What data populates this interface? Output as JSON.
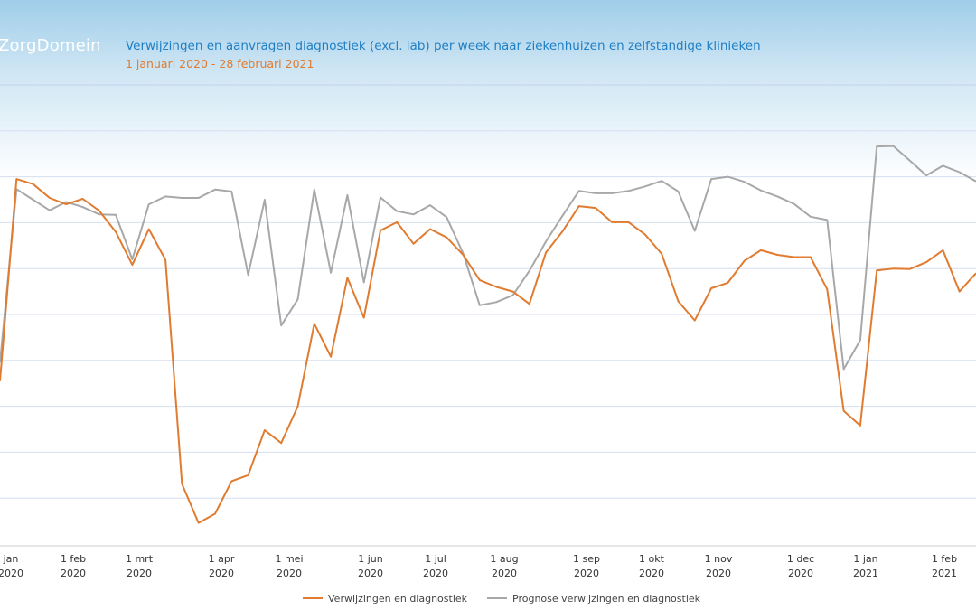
{
  "logo_text": "ZorgDomein",
  "title": "Verwijzingen en aanvragen diagnostiek (excl. lab) per week naar ziekenhuizen en zelfstandige klinieken",
  "subtitle": "1 januari 2020 - 28 februari 2021",
  "colors": {
    "title": "#1f7fc4",
    "subtitle": "#e07b2f",
    "actual": "#e07b2f",
    "forecast": "#a8a8a8",
    "gridline": "#d6def0",
    "topline": "#c4cff0",
    "axis": "#cccccc"
  },
  "chart_data": {
    "type": "line",
    "title": "Verwijzingen en aanvragen diagnostiek (excl. lab) per week naar ziekenhuizen en zelfstandige klinieken",
    "subtitle": "1 januari 2020 - 28 februari 2021",
    "xlabel": "",
    "ylabel": "",
    "y_tick_labels_visible": false,
    "ylim": [
      0,
      100
    ],
    "gridlines": [
      10,
      20,
      30,
      40,
      50,
      60,
      70,
      80,
      90
    ],
    "grid": true,
    "legend_position": "bottom-center",
    "x_tick_labels": [
      {
        "line1": "jan",
        "line2": "2020"
      },
      {
        "line1": "1 feb",
        "line2": "2020"
      },
      {
        "line1": "1 mrt",
        "line2": "2020"
      },
      {
        "line1": "1 apr",
        "line2": "2020"
      },
      {
        "line1": "1 mei",
        "line2": "2020"
      },
      {
        "line1": "1 jun",
        "line2": "2020"
      },
      {
        "line1": "1 jul",
        "line2": "2020"
      },
      {
        "line1": "1 aug",
        "line2": "2020"
      },
      {
        "line1": "1 sep",
        "line2": "2020"
      },
      {
        "line1": "1 okt",
        "line2": "2020"
      },
      {
        "line1": "1 nov",
        "line2": "2020"
      },
      {
        "line1": "1 dec",
        "line2": "2020"
      },
      {
        "line1": "1 jan",
        "line2": "2021"
      },
      {
        "line1": "1 feb",
        "line2": "2021"
      }
    ],
    "series": [
      {
        "name": "Verwijzingen en diagnostiek",
        "values": [
          35.5,
          79.5,
          78.4,
          75.4,
          74.0,
          75.2,
          72.6,
          68.0,
          60.8,
          68.6,
          61.9,
          13.1,
          4.6,
          6.6,
          13.7,
          15.0,
          24.8,
          22.0,
          30.0,
          48.0,
          40.8,
          58.0,
          49.3,
          68.3,
          70.1,
          65.4,
          68.6,
          66.8,
          63.0,
          57.5,
          56.0,
          55.0,
          52.3,
          63.5,
          68.1,
          73.6,
          73.2,
          70.1,
          70.1,
          67.4,
          63.2,
          52.9,
          48.7,
          55.7,
          56.9,
          61.7,
          64.0,
          63.0,
          62.5,
          62.5,
          55.5,
          29.0,
          25.8,
          59.6,
          60.0,
          59.9,
          61.4,
          64.0,
          55.0,
          59.0
        ]
      },
      {
        "name": "Prognose verwijzingen en diagnostiek",
        "values": [
          39.5,
          77.3,
          75.0,
          72.7,
          74.5,
          73.4,
          71.8,
          71.7,
          62.0,
          74.0,
          75.7,
          75.4,
          75.4,
          77.2,
          76.8,
          58.6,
          75.0,
          47.6,
          53.3,
          77.2,
          59.1,
          76.0,
          57.0,
          75.5,
          72.5,
          71.8,
          73.8,
          71.2,
          63.3,
          52.0,
          52.7,
          54.2,
          59.5,
          65.9,
          71.5,
          76.9,
          76.4,
          76.4,
          76.9,
          77.9,
          79.1,
          76.8,
          68.2,
          79.5,
          80.0,
          78.9,
          77.0,
          75.7,
          74.1,
          71.3,
          70.6,
          38.1,
          44.4,
          86.6,
          86.7,
          83.5,
          80.3,
          82.4,
          81.0,
          79.0
        ]
      }
    ]
  }
}
